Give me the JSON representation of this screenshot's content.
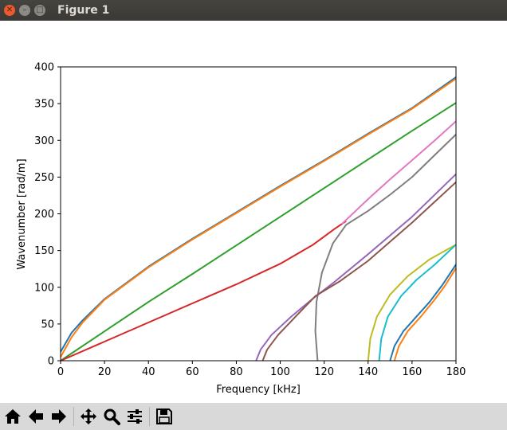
{
  "window": {
    "title": "Figure 1"
  },
  "toolbar": {
    "buttons": [
      {
        "name": "home-icon"
      },
      {
        "name": "back-arrow-icon"
      },
      {
        "name": "forward-arrow-icon"
      },
      {
        "name": "pan-icon"
      },
      {
        "name": "zoom-icon"
      },
      {
        "name": "subplots-icon"
      },
      {
        "name": "save-icon"
      }
    ]
  },
  "chart_data": {
    "type": "line",
    "title": "",
    "xlabel": "Frequency [kHz]",
    "ylabel": "Wavenumber [rad/m]",
    "xlim": [
      0,
      180
    ],
    "ylim": [
      0,
      400
    ],
    "xticks": [
      0,
      20,
      40,
      60,
      80,
      100,
      120,
      140,
      160,
      180
    ],
    "yticks": [
      0,
      50,
      100,
      150,
      200,
      250,
      300,
      350,
      400
    ],
    "grid": false,
    "legend": false,
    "series": [
      {
        "color": "#1f77b4",
        "points": [
          [
            0,
            12
          ],
          [
            5,
            38
          ],
          [
            10,
            55
          ],
          [
            20,
            84
          ],
          [
            40,
            128
          ],
          [
            60,
            166
          ],
          [
            80,
            202
          ],
          [
            100,
            238
          ],
          [
            120,
            273
          ],
          [
            140,
            309
          ],
          [
            160,
            344
          ],
          [
            180,
            386
          ]
        ]
      },
      {
        "color": "#ff7f0e",
        "points": [
          [
            0,
            5
          ],
          [
            5,
            32
          ],
          [
            10,
            52
          ],
          [
            20,
            83
          ],
          [
            40,
            127
          ],
          [
            60,
            165
          ],
          [
            80,
            201
          ],
          [
            100,
            237
          ],
          [
            120,
            272
          ],
          [
            140,
            308
          ],
          [
            160,
            343
          ],
          [
            180,
            384
          ]
        ]
      },
      {
        "color": "#2ca02c",
        "points": [
          [
            0,
            0
          ],
          [
            20,
            40
          ],
          [
            40,
            80
          ],
          [
            60,
            118
          ],
          [
            80,
            157
          ],
          [
            100,
            196
          ],
          [
            120,
            235
          ],
          [
            140,
            274
          ],
          [
            160,
            313
          ],
          [
            180,
            351
          ]
        ]
      },
      {
        "color": "#d62728",
        "points": [
          [
            0,
            0
          ],
          [
            20,
            26
          ],
          [
            40,
            52
          ],
          [
            60,
            78
          ],
          [
            80,
            104
          ],
          [
            100,
            132
          ],
          [
            115,
            158
          ],
          [
            125,
            180
          ],
          [
            130,
            190
          ]
        ]
      },
      {
        "color": "#e377c2",
        "points": [
          [
            128,
            186
          ],
          [
            140,
            220
          ],
          [
            150,
            247
          ],
          [
            160,
            273
          ],
          [
            170,
            299
          ],
          [
            180,
            326
          ]
        ]
      },
      {
        "color": "#7f7f7f",
        "points": [
          [
            117,
            0
          ],
          [
            116,
            40
          ],
          [
            116.5,
            80
          ],
          [
            119,
            120
          ],
          [
            124,
            160
          ],
          [
            130,
            185
          ],
          [
            140,
            204
          ],
          [
            150,
            226
          ],
          [
            160,
            250
          ],
          [
            170,
            279
          ],
          [
            180,
            308
          ]
        ]
      },
      {
        "color": "#9467bd",
        "points": [
          [
            89,
            0
          ],
          [
            91,
            15
          ],
          [
            96,
            35
          ],
          [
            105,
            60
          ],
          [
            115,
            85
          ],
          [
            125,
            108
          ],
          [
            140,
            145
          ],
          [
            160,
            196
          ],
          [
            180,
            254
          ]
        ]
      },
      {
        "color": "#8c564b",
        "points": [
          [
            92,
            0
          ],
          [
            94,
            15
          ],
          [
            99,
            35
          ],
          [
            107,
            60
          ],
          [
            116,
            88
          ],
          [
            127,
            108
          ],
          [
            140,
            136
          ],
          [
            160,
            188
          ],
          [
            180,
            243
          ]
        ]
      },
      {
        "color": "#bcbd22",
        "points": [
          [
            140,
            0
          ],
          [
            141,
            30
          ],
          [
            144,
            60
          ],
          [
            150,
            90
          ],
          [
            158,
            115
          ],
          [
            168,
            138
          ],
          [
            180,
            158
          ]
        ]
      },
      {
        "color": "#17becf",
        "points": [
          [
            145,
            0
          ],
          [
            146,
            30
          ],
          [
            149,
            60
          ],
          [
            155,
            88
          ],
          [
            162,
            110
          ],
          [
            170,
            130
          ],
          [
            180,
            158
          ]
        ]
      },
      {
        "color": "#1f77b4",
        "points": [
          [
            150,
            0
          ],
          [
            152,
            20
          ],
          [
            156,
            40
          ],
          [
            162,
            60
          ],
          [
            168,
            80
          ],
          [
            174,
            104
          ],
          [
            180,
            131
          ]
        ]
      },
      {
        "color": "#ff7f0e",
        "points": [
          [
            152,
            0
          ],
          [
            154,
            20
          ],
          [
            158,
            40
          ],
          [
            164,
            60
          ],
          [
            170,
            82
          ],
          [
            175,
            102
          ],
          [
            180,
            126
          ]
        ]
      }
    ]
  }
}
